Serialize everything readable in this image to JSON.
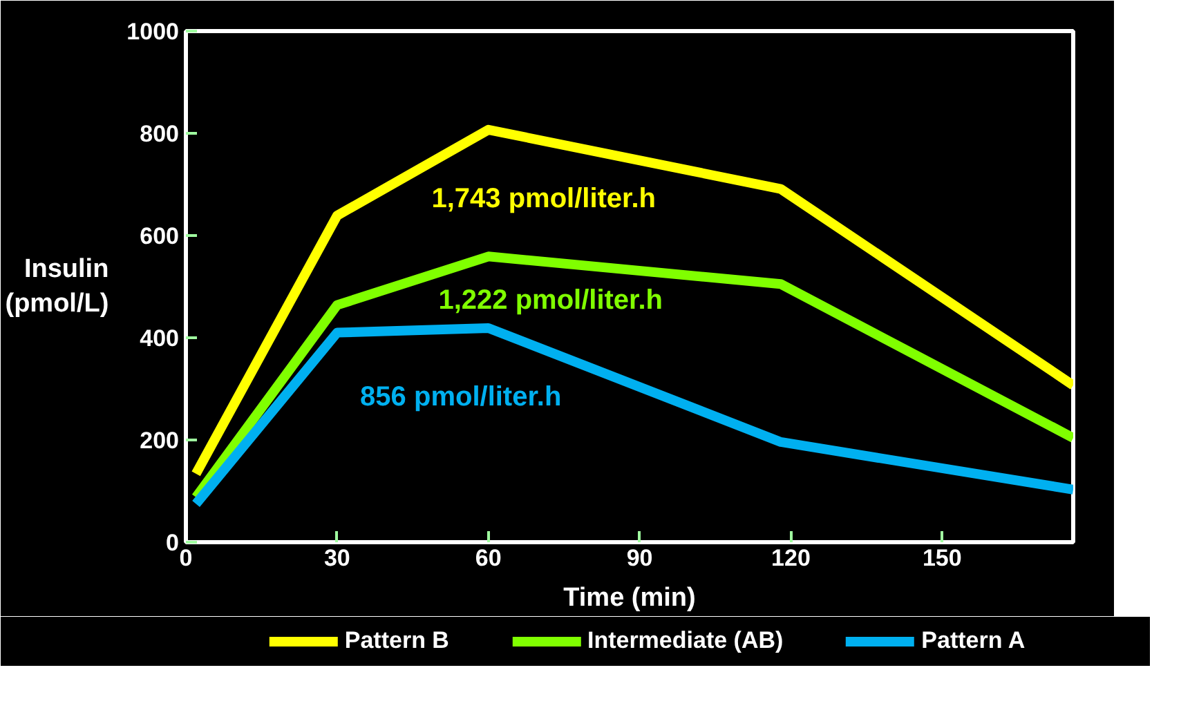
{
  "chart_data": {
    "type": "line",
    "xlabel": "Time (min)",
    "ylabel": "Insulin\n(pmol/L)",
    "x": [
      2,
      30,
      60,
      118,
      176
    ],
    "xlim": [
      0,
      176
    ],
    "xticks": [
      0,
      30,
      60,
      90,
      120,
      150
    ],
    "ylim": [
      0,
      1000
    ],
    "yticks": [
      0,
      200,
      400,
      600,
      800,
      1000
    ],
    "series": [
      {
        "name": "Pattern B",
        "color": "#ffff00",
        "values": [
          134,
          639,
          807,
          691,
          307
        ]
      },
      {
        "name": "Intermediate (AB)",
        "color": "#80ff00",
        "values": [
          88,
          464,
          559,
          505,
          204
        ]
      },
      {
        "name": "Pattern A",
        "color": "#00b0f0",
        "values": [
          75,
          410,
          419,
          196,
          103
        ]
      }
    ],
    "annotations": [
      "1,743 pmol/liter.h",
      "1,222 pmol/liter.h",
      "856 pmol/liter.h"
    ],
    "grid": false,
    "legend": "bottom",
    "line_style": "solid",
    "marker": "none"
  }
}
